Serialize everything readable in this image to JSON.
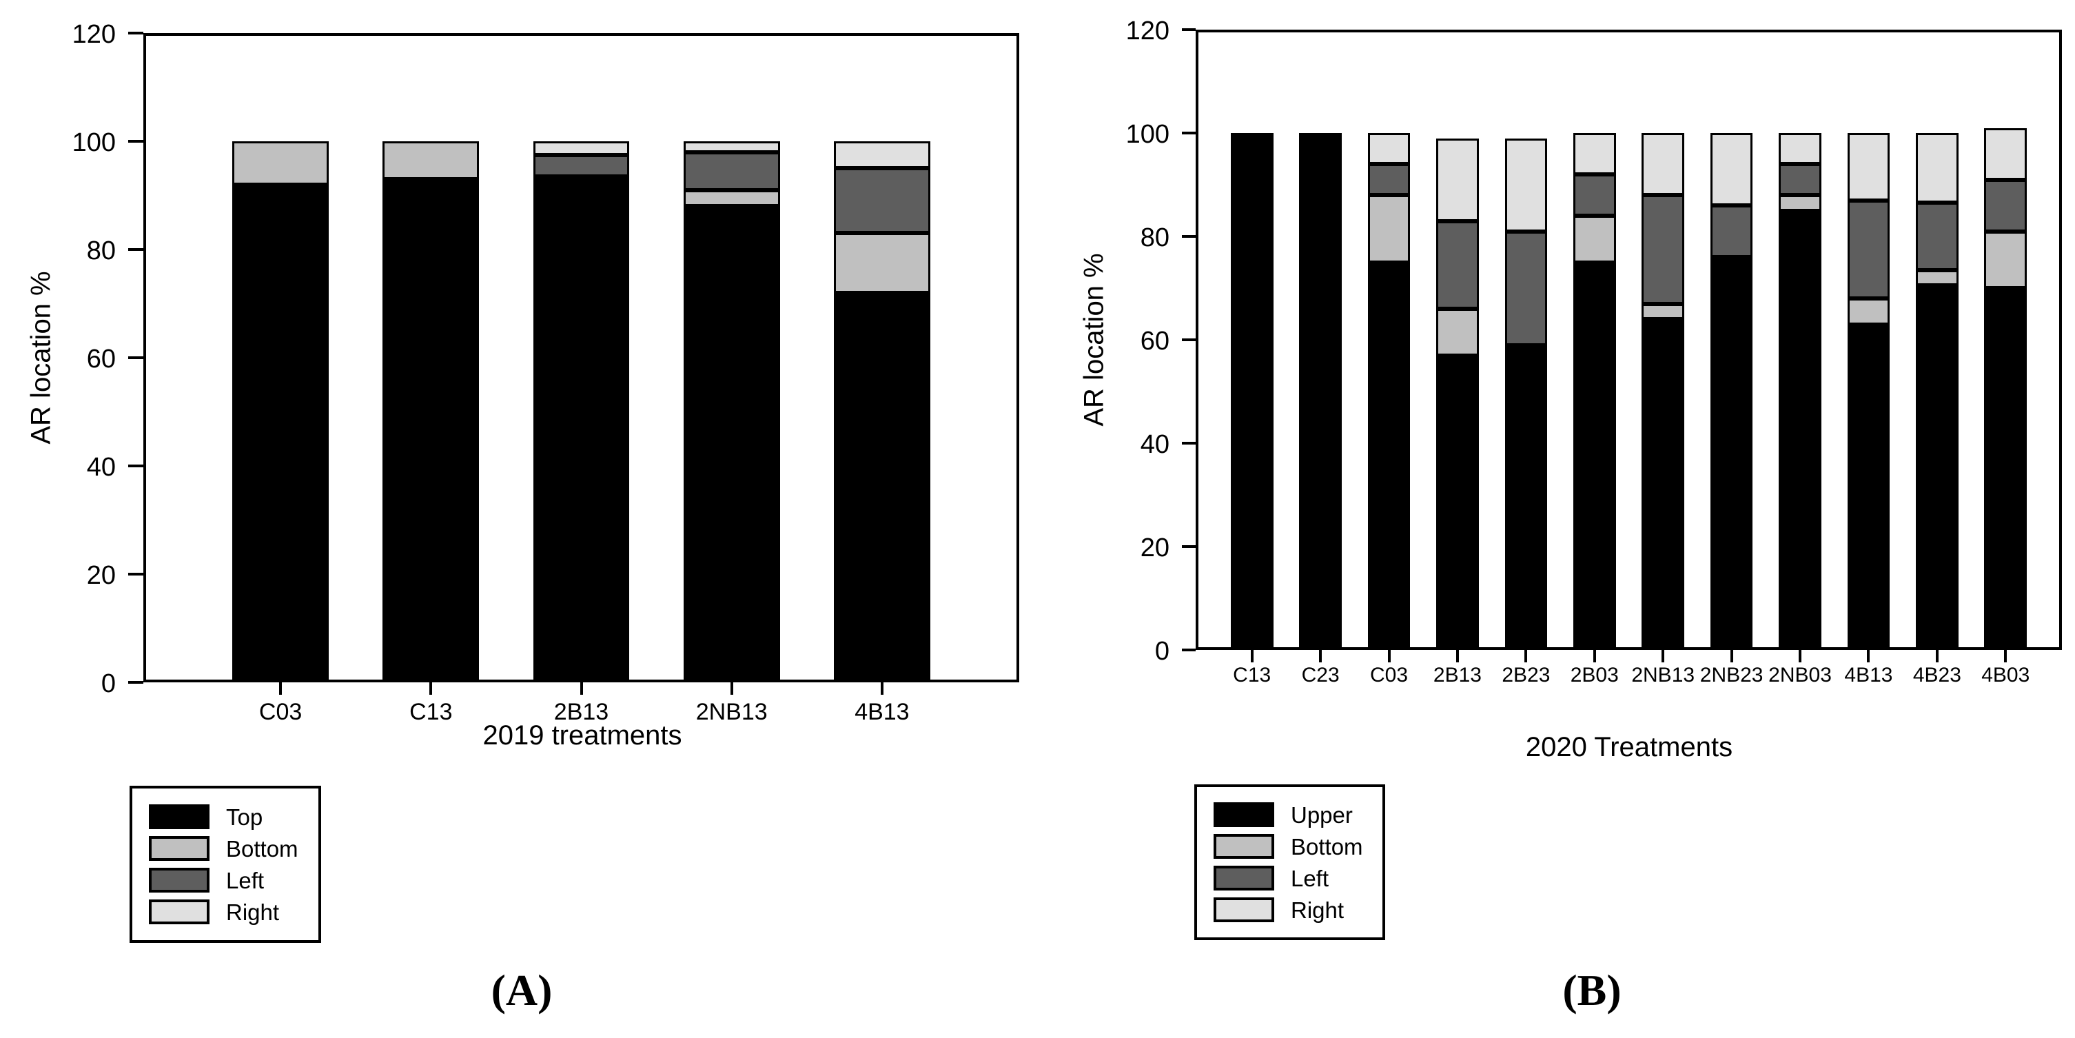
{
  "figure": {
    "background": "#ffffff",
    "axis_color": "#000000"
  },
  "chart_data": [
    {
      "type": "bar",
      "stacked": true,
      "caption": "(A)",
      "xlabel": "2019 treatments",
      "ylabel": "AR location %",
      "ylim": [
        0,
        120
      ],
      "yticks": [
        0,
        20,
        40,
        60,
        80,
        100,
        120
      ],
      "grid": false,
      "legend_position": "below-left",
      "categories": [
        "C03",
        "C13",
        "2B13",
        "2NB13",
        "4B13"
      ],
      "series": [
        {
          "name": "Top",
          "color": "#000000",
          "values": [
            92,
            93,
            93.5,
            88,
            72
          ]
        },
        {
          "name": "Bottom",
          "color": "#c0c0c0",
          "values": [
            8,
            7,
            0,
            3,
            11
          ]
        },
        {
          "name": "Left",
          "color": "#5e5e5e",
          "values": [
            0,
            0,
            4,
            7,
            12
          ]
        },
        {
          "name": "Right",
          "color": "#e0e0e0",
          "values": [
            0,
            0,
            2.5,
            2,
            5
          ]
        }
      ],
      "legend": {
        "items": [
          {
            "label": "Top",
            "color": "#000000"
          },
          {
            "label": "Bottom",
            "color": "#c0c0c0"
          },
          {
            "label": "Left",
            "color": "#5e5e5e"
          },
          {
            "label": "Right",
            "color": "#e0e0e0"
          }
        ]
      }
    },
    {
      "type": "bar",
      "stacked": true,
      "caption": "(B)",
      "xlabel": "2020 Treatments",
      "ylabel": "AR location %",
      "ylim": [
        0,
        120
      ],
      "yticks": [
        0,
        20,
        40,
        60,
        80,
        100,
        120
      ],
      "grid": false,
      "legend_position": "below-left",
      "categories": [
        "C13",
        "C23",
        "C03",
        "2B13",
        "2B23",
        "2B03",
        "2NB13",
        "2NB23",
        "2NB03",
        "4B13",
        "4B23",
        "4B03"
      ],
      "series": [
        {
          "name": "Upper",
          "color": "#000000",
          "values": [
            100,
            100,
            75,
            57,
            59,
            75,
            64,
            76,
            85,
            63,
            70.5,
            70
          ]
        },
        {
          "name": "Bottom",
          "color": "#c0c0c0",
          "values": [
            0,
            0,
            13,
            9,
            0,
            9,
            3,
            0,
            3,
            5,
            3,
            11
          ]
        },
        {
          "name": "Left",
          "color": "#5e5e5e",
          "values": [
            0,
            0,
            6,
            17,
            22,
            8,
            21,
            10,
            6,
            19,
            13,
            10
          ]
        },
        {
          "name": "Right",
          "color": "#e0e0e0",
          "values": [
            0,
            0,
            6,
            16,
            18,
            8,
            12,
            14,
            6,
            13,
            13.5,
            10
          ]
        }
      ],
      "legend": {
        "items": [
          {
            "label": "Upper",
            "color": "#000000"
          },
          {
            "label": "Bottom",
            "color": "#c0c0c0"
          },
          {
            "label": "Left",
            "color": "#5e5e5e"
          },
          {
            "label": "Right",
            "color": "#e0e0e0"
          }
        ]
      }
    }
  ]
}
